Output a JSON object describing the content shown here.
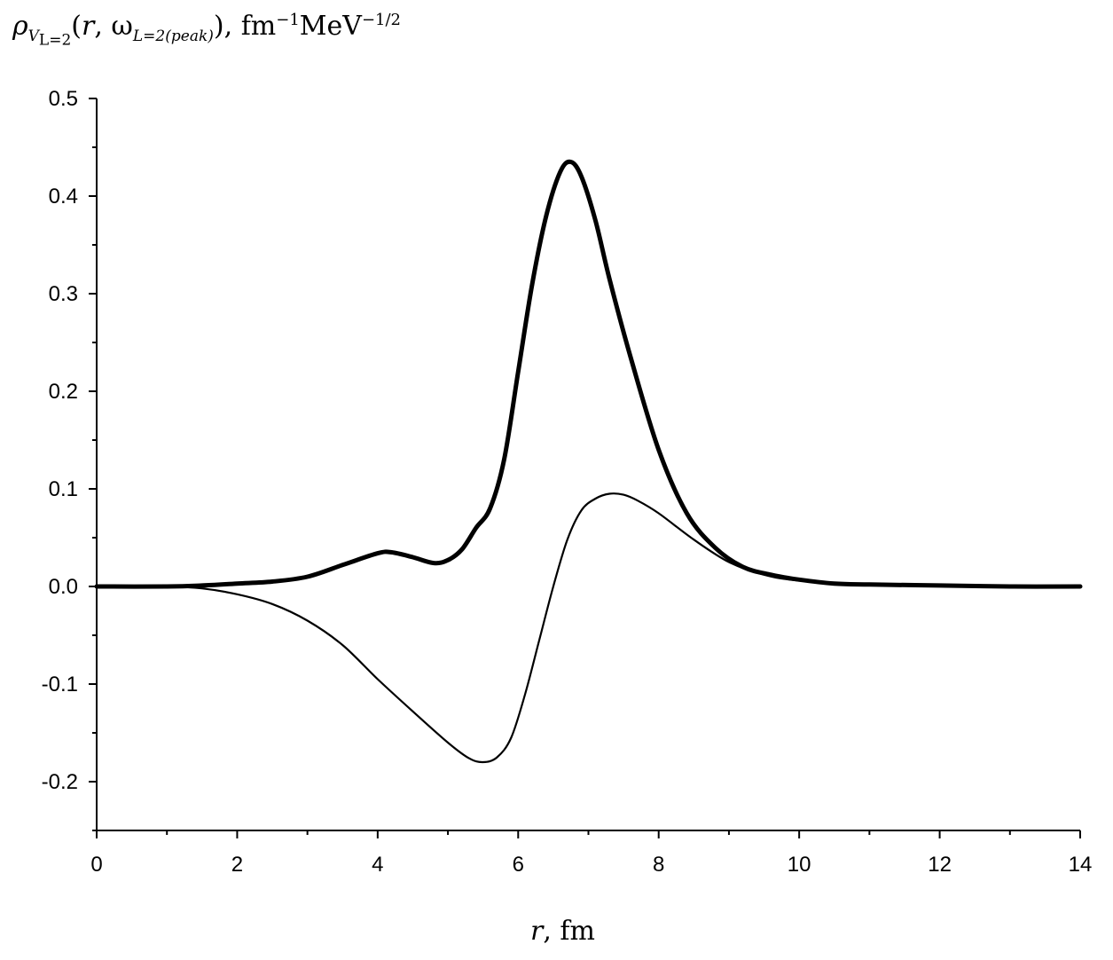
{
  "chart_data": {
    "type": "line",
    "ylabel": {
      "symbol": "ρ",
      "sub_symbol": "V",
      "sub_sub": "L=2",
      "args_open": "(",
      "arg_r": "r",
      "arg_sep": ", ω",
      "omega_sub": "L=2(peak)",
      "args_close": ")",
      "units_sep": ", ",
      "unit1": "fm",
      "unit1_exp": "−1",
      "unit2": "MeV",
      "unit2_exp": "−1/2"
    },
    "xlabel": {
      "var": "r",
      "unit": ", fm"
    },
    "xlim": [
      0,
      14
    ],
    "ylim": [
      -0.25,
      0.5
    ],
    "x_ticks": [
      "0",
      "2",
      "4",
      "6",
      "8",
      "10",
      "12",
      "14"
    ],
    "y_ticks": [
      "-0.2",
      "-0.1",
      "0.0",
      "0.1",
      "0.2",
      "0.3",
      "0.4",
      "0.5"
    ],
    "grid": false,
    "series": [
      {
        "style": "thick",
        "color": "#000000",
        "x": [
          0,
          1,
          1.5,
          2,
          2.5,
          3,
          3.5,
          4,
          4.2,
          4.5,
          4.8,
          5,
          5.2,
          5.4,
          5.6,
          5.8,
          6,
          6.2,
          6.4,
          6.6,
          6.75,
          6.9,
          7.1,
          7.3,
          7.6,
          8,
          8.4,
          8.8,
          9.2,
          9.6,
          10,
          10.5,
          11,
          12,
          13,
          14
        ],
        "y": [
          0,
          0,
          0.001,
          0.003,
          0.005,
          0.01,
          0.022,
          0.034,
          0.035,
          0.03,
          0.024,
          0.027,
          0.038,
          0.06,
          0.08,
          0.13,
          0.22,
          0.31,
          0.38,
          0.425,
          0.435,
          0.42,
          0.375,
          0.315,
          0.235,
          0.14,
          0.075,
          0.04,
          0.02,
          0.012,
          0.007,
          0.003,
          0.002,
          0.001,
          0,
          0
        ]
      },
      {
        "style": "thin",
        "color": "#000000",
        "x": [
          0,
          1,
          1.5,
          2,
          2.5,
          3,
          3.5,
          4,
          4.5,
          5,
          5.3,
          5.5,
          5.7,
          5.9,
          6.1,
          6.3,
          6.5,
          6.7,
          6.9,
          7.1,
          7.3,
          7.5,
          7.7,
          8,
          8.5,
          9,
          9.5,
          10,
          11,
          12,
          13,
          14
        ],
        "y": [
          0,
          0,
          -0.002,
          -0.008,
          -0.018,
          -0.035,
          -0.06,
          -0.095,
          -0.128,
          -0.16,
          -0.176,
          -0.18,
          -0.175,
          -0.155,
          -0.11,
          -0.055,
          0,
          0.048,
          0.078,
          0.09,
          0.095,
          0.094,
          0.088,
          0.075,
          0.048,
          0.025,
          0.012,
          0.006,
          0.002,
          0.001,
          0,
          0
        ]
      }
    ]
  }
}
